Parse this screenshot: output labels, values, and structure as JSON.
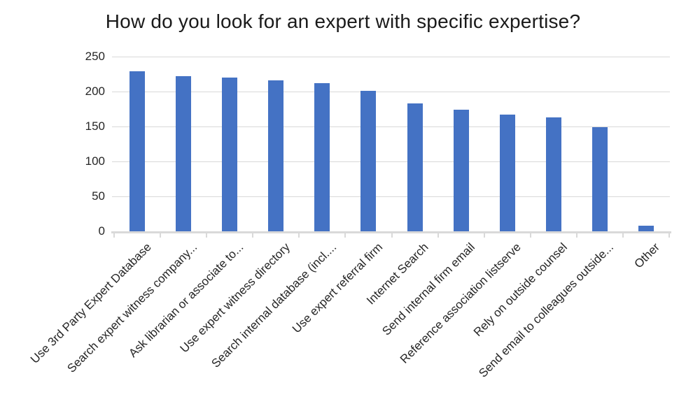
{
  "chart_data": {
    "type": "bar",
    "title": "How do you look for an expert with specific expertise?",
    "categories": [
      "Use 3rd Party Expert Database",
      "Search expert witness company...",
      "Ask librarian or associate to...",
      "Use expert witness directory",
      "Search internal database (incl....",
      "Use expert referral firm",
      "Internet Search",
      "Send internal firm email",
      "Reference association listserve",
      "Rely on outside counsel",
      "Send email to colleagues outside...",
      "Other"
    ],
    "values": [
      229,
      222,
      220,
      216,
      212,
      201,
      183,
      174,
      167,
      163,
      149,
      8
    ],
    "xlabel": "",
    "ylabel": "",
    "ylim": [
      0,
      250
    ],
    "yticks": [
      0,
      50,
      100,
      150,
      200,
      250
    ],
    "grid": "horizontal",
    "legend": "none",
    "colors": {
      "bar": "#4472C4",
      "gridline": "#D9D9D9",
      "axis": "#D9D9D9",
      "label_text": "#262626",
      "title_text": "#1a1a1a",
      "background": "#FFFFFF"
    }
  }
}
